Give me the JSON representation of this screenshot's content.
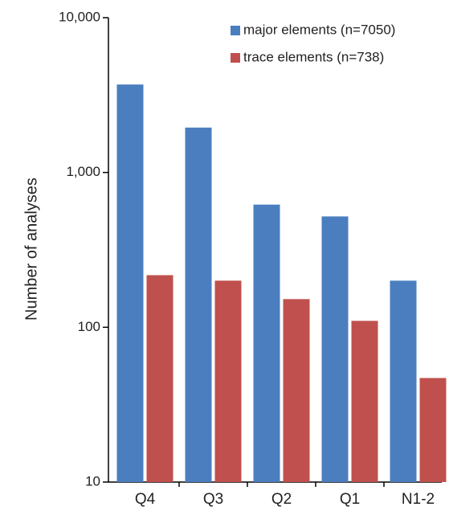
{
  "chart_data": {
    "type": "bar",
    "y_label": "Number of analyses",
    "categories": [
      "Q4",
      "Q3",
      "Q2",
      "Q1",
      "N1-2"
    ],
    "series": [
      {
        "name": "major elements (n=7050)",
        "color": "#4a7ebf",
        "values": [
          3700,
          1950,
          620,
          520,
          200
        ]
      },
      {
        "name": "trace elements (n=738)",
        "color": "#c0504d",
        "values": [
          217,
          200,
          152,
          110,
          47
        ]
      }
    ],
    "ylim": [
      10,
      10000
    ],
    "log_scale": true,
    "yticks": [
      {
        "value": 10,
        "label": "10"
      },
      {
        "value": 100,
        "label": "100"
      },
      {
        "value": 1000,
        "label": "1,000"
      },
      {
        "value": 10000,
        "label": "10,000"
      }
    ],
    "legend": "top-right"
  }
}
